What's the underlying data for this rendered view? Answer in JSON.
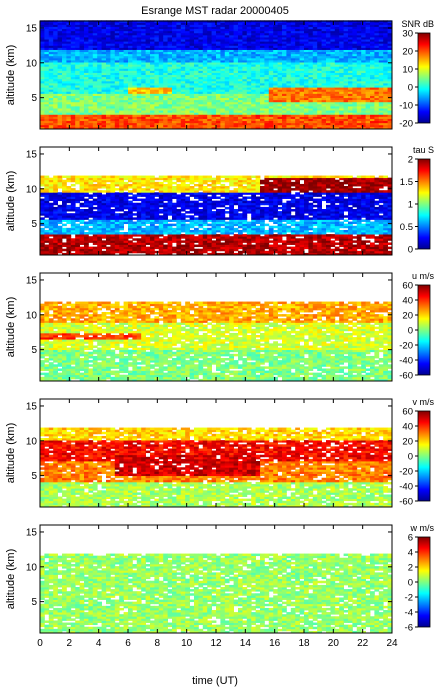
{
  "chart_data": {
    "type": "heatmap",
    "title": "Esrange MST radar 20000405",
    "xlabel": "time (UT)",
    "ylabel": "altitude (km)",
    "xlim": [
      0,
      24
    ],
    "ylim": [
      0.5,
      16
    ],
    "x_ticks": [
      "0",
      "2",
      "4",
      "6",
      "8",
      "10",
      "12",
      "14",
      "16",
      "18",
      "20",
      "22",
      "24"
    ],
    "y_ticks": [
      "5",
      "10",
      "15"
    ],
    "colormap": "jet",
    "panels": [
      {
        "name": "snr",
        "colorbar_label": "SNR dB",
        "clim": [
          -20,
          30
        ],
        "colorbar_ticks": [
          "-20",
          "-10",
          "0",
          "10",
          "20",
          "30"
        ],
        "layers": [
          {
            "time_range": [
              0,
              24
            ],
            "alt_range": [
              0.5,
              2.5
            ],
            "value": 20
          },
          {
            "time_range": [
              0,
              24
            ],
            "alt_range": [
              2.5,
              5.5
            ],
            "value": 5
          },
          {
            "time_range": [
              0,
              24
            ],
            "alt_range": [
              5.5,
              10
            ],
            "value": 0
          },
          {
            "time_range": [
              0,
              24
            ],
            "alt_range": [
              10,
              12
            ],
            "value": -5
          },
          {
            "time_range": [
              0,
              24
            ],
            "alt_range": [
              12,
              16
            ],
            "value": -15
          }
        ],
        "features": [
          {
            "time_range": [
              15.5,
              24
            ],
            "alt_range": [
              4.5,
              6.5
            ],
            "value": 18
          },
          {
            "time_range": [
              6,
              9
            ],
            "alt_range": [
              5.5,
              6.5
            ],
            "value": 14
          }
        ]
      },
      {
        "name": "tau",
        "colorbar_label": "tau S",
        "clim": [
          0,
          2
        ],
        "colorbar_ticks": [
          "0",
          "0.5",
          "1",
          "1.5",
          "2"
        ],
        "layers": [
          {
            "time_range": [
              0,
              24
            ],
            "alt_range": [
              0.5,
              3.5
            ],
            "value": 1.9
          },
          {
            "time_range": [
              0,
              24
            ],
            "alt_range": [
              3.5,
              5.5
            ],
            "value": 0.6
          },
          {
            "time_range": [
              0,
              24
            ],
            "alt_range": [
              5.5,
              9.5
            ],
            "value": 0.2
          },
          {
            "time_range": [
              0,
              24
            ],
            "alt_range": [
              9.5,
              12
            ],
            "value": 1.3
          }
        ],
        "features": [
          {
            "time_range": [
              15,
              24
            ],
            "alt_range": [
              9.5,
              11.5
            ],
            "value": 1.95
          }
        ]
      },
      {
        "name": "u",
        "colorbar_label": "u m/s",
        "clim": [
          -60,
          60
        ],
        "colorbar_ticks": [
          "-60",
          "-40",
          "-20",
          "0",
          "20",
          "40",
          "60"
        ],
        "layers": [
          {
            "time_range": [
              0,
              24
            ],
            "alt_range": [
              0.5,
              5
            ],
            "value": 0
          },
          {
            "time_range": [
              0,
              24
            ],
            "alt_range": [
              5,
              9
            ],
            "value": 10
          },
          {
            "time_range": [
              0,
              24
            ],
            "alt_range": [
              9,
              12
            ],
            "value": 25
          }
        ],
        "features": [
          {
            "time_range": [
              0,
              7
            ],
            "alt_range": [
              6.5,
              7.5
            ],
            "value": 40
          }
        ]
      },
      {
        "name": "v",
        "colorbar_label": "v m/s",
        "clim": [
          -60,
          60
        ],
        "colorbar_ticks": [
          "-60",
          "-40",
          "-20",
          "0",
          "20",
          "40",
          "60"
        ],
        "layers": [
          {
            "time_range": [
              0,
              24
            ],
            "alt_range": [
              0.5,
              4
            ],
            "value": 5
          },
          {
            "time_range": [
              0,
              24
            ],
            "alt_range": [
              4,
              7
            ],
            "value": 30
          },
          {
            "time_range": [
              0,
              24
            ],
            "alt_range": [
              7,
              10
            ],
            "value": 45
          },
          {
            "time_range": [
              0,
              24
            ],
            "alt_range": [
              10,
              12
            ],
            "value": 20
          }
        ],
        "features": [
          {
            "time_range": [
              5,
              15
            ],
            "alt_range": [
              5,
              8
            ],
            "value": 50
          }
        ]
      },
      {
        "name": "w",
        "colorbar_label": "w m/s",
        "clim": [
          -6,
          6
        ],
        "colorbar_ticks": [
          "-6",
          "-4",
          "-2",
          "0",
          "2",
          "4",
          "6"
        ],
        "layers": [
          {
            "time_range": [
              0,
              24
            ],
            "alt_range": [
              0.5,
              12
            ],
            "value": 0.3
          }
        ],
        "features": []
      }
    ]
  }
}
